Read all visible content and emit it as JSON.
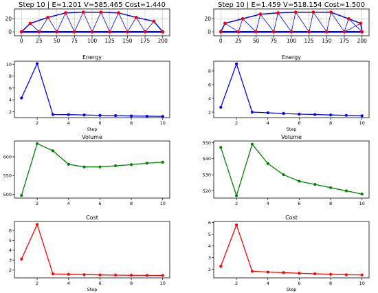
{
  "figure": {
    "background": "#ffffff"
  },
  "chart_data": [
    {
      "type": "truss",
      "title": "Step 10 | E=1.201 V=585.465 Cost=1.440",
      "xticks": [
        0,
        25,
        50,
        75,
        100,
        125,
        150,
        175,
        200
      ],
      "yticks": [
        0,
        20
      ],
      "xlim": [
        -10,
        210
      ],
      "ylim": [
        -6,
        35
      ],
      "grid": true,
      "colors": {
        "members": "#0000ff",
        "nodes": "#ff0000",
        "grid": "#b0b0b0"
      },
      "top_chord": [
        [
          0,
          0
        ],
        [
          12.5,
          13
        ],
        [
          37.5,
          22
        ],
        [
          62.5,
          29
        ],
        [
          87.5,
          30
        ],
        [
          112.5,
          30
        ],
        [
          137.5,
          29
        ],
        [
          162.5,
          22
        ],
        [
          187.5,
          16
        ],
        [
          200,
          0
        ]
      ],
      "bottom_chord": [
        [
          0,
          0
        ],
        [
          25,
          0
        ],
        [
          50,
          0
        ],
        [
          75,
          0
        ],
        [
          100,
          0
        ],
        [
          125,
          0
        ],
        [
          150,
          0
        ],
        [
          175,
          0
        ],
        [
          200,
          0
        ]
      ]
    },
    {
      "type": "truss",
      "title": "Step 10 | E=1.459 V=518.154 Cost=1.500",
      "xticks": [
        0,
        25,
        50,
        75,
        100,
        125,
        150,
        175,
        200
      ],
      "yticks": [
        0,
        20
      ],
      "xlim": [
        -10,
        210
      ],
      "ylim": [
        -6,
        35
      ],
      "grid": true,
      "colors": {
        "members": "#0000ff",
        "nodes": "#ff0000",
        "grid": "#b0b0b0"
      },
      "top_chord": [
        [
          0,
          0
        ],
        [
          6,
          13
        ],
        [
          31,
          20
        ],
        [
          56,
          27
        ],
        [
          81,
          29
        ],
        [
          106,
          30
        ],
        [
          131,
          30
        ],
        [
          156,
          30
        ],
        [
          181,
          20
        ],
        [
          198,
          13
        ],
        [
          200,
          0
        ]
      ],
      "bottom_chord": [
        [
          0,
          0
        ],
        [
          25,
          0
        ],
        [
          50,
          0
        ],
        [
          75,
          0
        ],
        [
          100,
          0
        ],
        [
          125,
          0
        ],
        [
          150,
          0
        ],
        [
          175,
          0
        ],
        [
          200,
          0
        ]
      ]
    },
    {
      "type": "line",
      "title": "Energy",
      "xlabel": "Step",
      "ylabel": "",
      "color": "#0000ff",
      "x": [
        1,
        2,
        3,
        4,
        5,
        6,
        7,
        8,
        9,
        10
      ],
      "y": [
        4.3,
        10.1,
        1.52,
        1.5,
        1.45,
        1.38,
        1.33,
        1.28,
        1.24,
        1.2
      ],
      "xlim": [
        0.55,
        10.45
      ],
      "ylim": [
        1.0,
        10.5
      ],
      "xticks": [
        2,
        4,
        6,
        8,
        10
      ],
      "yticks": [
        2,
        4,
        6,
        8,
        10
      ]
    },
    {
      "type": "line",
      "title": "Energy",
      "xlabel": "Step",
      "ylabel": "",
      "color": "#0000ff",
      "x": [
        1,
        2,
        3,
        4,
        5,
        6,
        7,
        8,
        9,
        10
      ],
      "y": [
        2.7,
        9.0,
        2.0,
        1.9,
        1.8,
        1.7,
        1.65,
        1.58,
        1.53,
        1.46
      ],
      "xlim": [
        0.55,
        10.45
      ],
      "ylim": [
        1.2,
        9.4
      ],
      "xticks": [
        2,
        4,
        6,
        8,
        10
      ],
      "yticks": [
        2,
        4,
        6,
        8
      ]
    },
    {
      "type": "line",
      "title": "Volume",
      "xlabel": "",
      "ylabel": "",
      "color": "#008000",
      "x": [
        1,
        2,
        3,
        4,
        5,
        6,
        7,
        8,
        9,
        10
      ],
      "y": [
        497,
        635,
        616,
        580,
        573,
        573,
        576,
        579,
        583,
        585.5
      ],
      "xlim": [
        0.55,
        10.45
      ],
      "ylim": [
        490,
        642
      ],
      "xticks": [
        2,
        4,
        6,
        8,
        10
      ],
      "yticks": [
        500,
        550,
        600
      ]
    },
    {
      "type": "line",
      "title": "Volume",
      "xlabel": "",
      "ylabel": "",
      "color": "#008000",
      "x": [
        1,
        2,
        3,
        4,
        5,
        6,
        7,
        8,
        9,
        10
      ],
      "y": [
        547,
        517,
        549,
        537,
        530,
        526,
        524,
        522,
        520,
        518
      ],
      "xlim": [
        0.55,
        10.45
      ],
      "ylim": [
        515.5,
        551
      ],
      "xticks": [
        2,
        4,
        6,
        8,
        10
      ],
      "yticks": [
        520,
        530,
        540,
        550
      ]
    },
    {
      "type": "line",
      "title": "Cost",
      "xlabel": "Step",
      "ylabel": "",
      "color": "#ff0000",
      "x": [
        1,
        2,
        3,
        4,
        5,
        6,
        7,
        8,
        9,
        10
      ],
      "y": [
        3.1,
        6.6,
        1.6,
        1.57,
        1.53,
        1.5,
        1.48,
        1.46,
        1.45,
        1.44
      ],
      "xlim": [
        0.55,
        10.45
      ],
      "ylim": [
        1.2,
        6.9
      ],
      "xticks": [
        2,
        4,
        6,
        8,
        10
      ],
      "yticks": [
        2,
        3,
        4,
        5,
        6
      ]
    },
    {
      "type": "line",
      "title": "Cost",
      "xlabel": "Step",
      "ylabel": "",
      "color": "#ff0000",
      "x": [
        1,
        2,
        3,
        4,
        5,
        6,
        7,
        8,
        9,
        10
      ],
      "y": [
        2.25,
        5.8,
        1.82,
        1.75,
        1.7,
        1.65,
        1.6,
        1.56,
        1.52,
        1.5
      ],
      "xlim": [
        0.55,
        10.45
      ],
      "ylim": [
        1.25,
        6.1
      ],
      "xticks": [
        2,
        4,
        6,
        8,
        10
      ],
      "yticks": [
        2,
        3,
        4,
        5,
        6
      ]
    }
  ]
}
